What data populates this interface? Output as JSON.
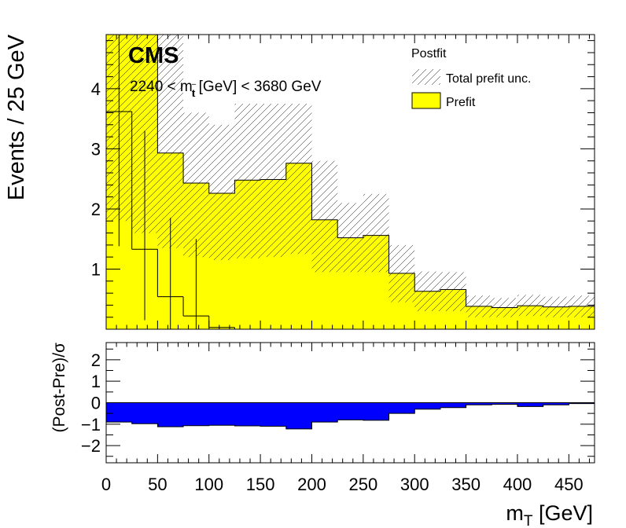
{
  "chart_data": [
    {
      "type": "histogram",
      "cms_label": "CMS",
      "range_label": {
        "prefix": "2240 < m",
        "sub": "t",
        "suffix": " [GeV] < 3680 GeV"
      },
      "legend": {
        "header": "Postfit",
        "entries": [
          "Total prefit unc.",
          "Prefit"
        ]
      },
      "ylabel": "Events / 25 GeV",
      "xlim": [
        0,
        475
      ],
      "ylim": [
        0,
        4.9
      ],
      "yticks": [
        "1",
        "2",
        "3",
        "4"
      ],
      "bin_edges": [
        0,
        25,
        50,
        75,
        100,
        125,
        150,
        175,
        200,
        225,
        250,
        275,
        300,
        325,
        350,
        375,
        400,
        425,
        450,
        475
      ],
      "prefit": [
        4.9,
        4.9,
        2.93,
        2.43,
        2.26,
        2.48,
        2.49,
        2.76,
        1.82,
        1.52,
        1.56,
        0.93,
        0.63,
        0.66,
        0.38,
        0.36,
        0.39,
        0.37,
        0.38
      ],
      "unc_low": [
        1.8,
        1.6,
        1.35,
        1.2,
        1.15,
        1.18,
        1.2,
        1.25,
        0.95,
        0.95,
        0.95,
        0.45,
        0.3,
        0.3,
        0.2,
        0.2,
        0.22,
        0.2,
        0.2
      ],
      "unc_high": [
        4.9,
        4.9,
        4.9,
        3.6,
        3.4,
        3.75,
        3.75,
        3.75,
        2.8,
        2.1,
        2.25,
        1.4,
        0.96,
        0.95,
        0.56,
        0.52,
        0.57,
        0.54,
        0.56
      ],
      "postfit": [
        3.62,
        1.33,
        0.54,
        0.22,
        0.03,
        0,
        0,
        0,
        0,
        0,
        0,
        0,
        0,
        0,
        0,
        0,
        0,
        0,
        0
      ],
      "postfit_err": [
        {
          "x": 12.5,
          "low": 1.38,
          "high": 4.9
        },
        {
          "x": 37.5,
          "low": 0.15,
          "high": 3.3
        },
        {
          "x": 62.5,
          "low": 0,
          "high": 1.85
        },
        {
          "x": 87.5,
          "low": 0,
          "high": 1.5
        }
      ]
    },
    {
      "type": "bar",
      "ylabel": "(Post-Pre)/σ",
      "xlabel": "m",
      "xlabel_sub": "T",
      "xlabel_suffix": " [GeV]",
      "xlim": [
        0,
        475
      ],
      "ylim": [
        -2.8,
        2.8
      ],
      "yticks": [
        "−2",
        "−1",
        "0",
        "1",
        "2"
      ],
      "xticks": [
        "0",
        "50",
        "100",
        "150",
        "200",
        "250",
        "300",
        "350",
        "400",
        "450"
      ],
      "values": [
        -0.9,
        -0.98,
        -1.12,
        -1.07,
        -1.05,
        -1.08,
        -1.1,
        -1.22,
        -0.9,
        -0.8,
        -0.82,
        -0.5,
        -0.3,
        -0.23,
        -0.1,
        -0.08,
        -0.18,
        -0.1,
        -0.04
      ]
    }
  ],
  "colors": {
    "prefit": "#ffff00",
    "diff": "#0000ff",
    "line": "#000000"
  }
}
